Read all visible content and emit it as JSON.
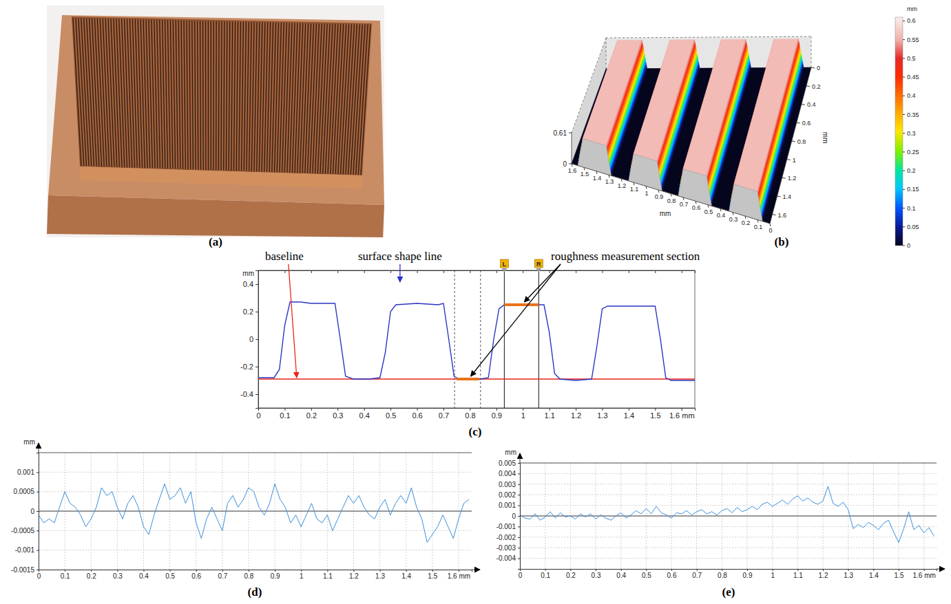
{
  "photo": {
    "panel": "(a)"
  },
  "chart_data": [
    {
      "type": "surface3d",
      "panel": "(b)",
      "x": [
        1.6,
        1.55,
        1.51,
        1.32,
        1.28,
        1.14,
        1.1,
        0.91,
        0.87,
        0.74,
        0.7,
        0.51,
        0.47,
        0.33,
        0.29,
        0.1,
        0.06,
        0
      ],
      "values": [
        0,
        0,
        0.56,
        0.56,
        0,
        0,
        0.56,
        0.56,
        0,
        0,
        0.56,
        0.56,
        0,
        0,
        0.56,
        0.56,
        0,
        0
      ],
      "xlim": [
        0,
        1.6
      ],
      "xticks": [
        1.6,
        1.5,
        1.4,
        1.3,
        1.2,
        1.1,
        1,
        0.9,
        0.8,
        0.7,
        0.6,
        0.5,
        0.4,
        0.3,
        0.2,
        0.1,
        0
      ],
      "ylim": [
        0,
        1.7
      ],
      "yticks": [
        0,
        0.2,
        0.4,
        0.6,
        0.8,
        1,
        1.2,
        1.4,
        1.6
      ],
      "zlim": [
        0,
        0.61
      ],
      "zticks": [
        0,
        0.61
      ],
      "x_label": "mm",
      "y_label": "mm",
      "colorbar": {
        "label": "mm",
        "range": [
          0,
          0.61
        ],
        "ticks": [
          0,
          0.05,
          0.1,
          0.15,
          0.2,
          0.25,
          0.3,
          0.35,
          0.4,
          0.45,
          0.5,
          0.55,
          0.6
        ]
      }
    },
    {
      "type": "line",
      "panel": "(c)",
      "x": [
        0,
        0.06,
        0.08,
        0.1,
        0.12,
        0.16,
        0.2,
        0.25,
        0.29,
        0.31,
        0.33,
        0.36,
        0.42,
        0.46,
        0.48,
        0.5,
        0.52,
        0.6,
        0.68,
        0.7,
        0.72,
        0.74,
        0.76,
        0.84,
        0.87,
        0.89,
        0.91,
        0.93,
        1,
        1.08,
        1.1,
        1.12,
        1.14,
        1.2,
        1.26,
        1.28,
        1.3,
        1.32,
        1.4,
        1.5,
        1.52,
        1.54,
        1.56,
        1.65
      ],
      "values": [
        -0.28,
        -0.28,
        -0.22,
        0.1,
        0.27,
        0.27,
        0.26,
        0.26,
        0.26,
        0,
        -0.27,
        -0.29,
        -0.29,
        -0.28,
        -0.1,
        0.2,
        0.25,
        0.26,
        0.25,
        0.26,
        0,
        -0.27,
        -0.29,
        -0.29,
        -0.28,
        0,
        0.22,
        0.25,
        0.25,
        0.25,
        0.05,
        -0.25,
        -0.29,
        -0.3,
        -0.29,
        -0.05,
        0.22,
        0.24,
        0.24,
        0.24,
        0,
        -0.28,
        -0.3,
        -0.3
      ],
      "color": "#2b35c4",
      "xlim": [
        0,
        1.65
      ],
      "xticks": [
        0,
        0.1,
        0.2,
        0.3,
        0.4,
        0.5,
        0.6,
        0.7,
        0.8,
        0.9,
        1,
        1.1,
        1.2,
        1.3,
        1.4,
        1.5,
        {
          "value": 1.6,
          "label": "1.6 mm"
        }
      ],
      "ylim": [
        -0.5,
        0.5
      ],
      "yticks": [
        -0.4,
        -0.2,
        0,
        0.2,
        0.4
      ],
      "y_label": "mm",
      "grid": false,
      "baseline": {
        "value": -0.29,
        "label": "baseline",
        "color": "#e8231a"
      },
      "line_label": "surface shape line",
      "markers": [
        {
          "label": "L",
          "x": 0.93
        },
        {
          "label": "R",
          "x": 1.06
        }
      ],
      "guides": [
        0.742,
        0.84
      ],
      "sections": [
        {
          "x": [
            0.75,
            0.835
          ],
          "y": -0.29
        },
        {
          "x": [
            0.93,
            1.06
          ],
          "y": 0.25
        }
      ],
      "sections_label": "roughness measurement section"
    },
    {
      "type": "line",
      "panel": "(d)",
      "x": [
        0,
        0.02,
        0.04,
        0.06,
        0.08,
        0.1,
        0.12,
        0.14,
        0.16,
        0.18,
        0.2,
        0.22,
        0.24,
        0.26,
        0.28,
        0.3,
        0.32,
        0.34,
        0.36,
        0.38,
        0.4,
        0.42,
        0.44,
        0.46,
        0.48,
        0.5,
        0.52,
        0.54,
        0.56,
        0.58,
        0.6,
        0.62,
        0.64,
        0.66,
        0.68,
        0.7,
        0.72,
        0.74,
        0.76,
        0.78,
        0.8,
        0.82,
        0.84,
        0.86,
        0.88,
        0.9,
        0.92,
        0.94,
        0.96,
        0.98,
        1,
        1.02,
        1.04,
        1.06,
        1.08,
        1.1,
        1.12,
        1.14,
        1.16,
        1.18,
        1.2,
        1.22,
        1.24,
        1.26,
        1.28,
        1.3,
        1.32,
        1.34,
        1.36,
        1.38,
        1.4,
        1.42,
        1.44,
        1.46,
        1.48,
        1.5,
        1.52,
        1.54,
        1.56,
        1.58,
        1.6,
        1.62,
        1.64
      ],
      "values": [
        -0.0001,
        -0.0003,
        -0.0002,
        -0.0003,
        0.0001,
        0.0005,
        0.0002,
        0.0001,
        -0.0001,
        -0.0004,
        -0.0002,
        0.0001,
        0.0006,
        0.0004,
        0.0005,
        0.0001,
        -0.0002,
        0.0002,
        0.0004,
        0.0001,
        -0.0004,
        -0.0006,
        -0.0001,
        0.0003,
        0.0007,
        0.0003,
        0.0004,
        0.0006,
        0.0002,
        0.0005,
        -0.0003,
        -0.0007,
        -0.0002,
        0.0001,
        -0.0002,
        -0.0005,
        0.0002,
        0.0004,
        0.0001,
        0.0003,
        0.0006,
        0.0005,
        0.0001,
        -0.0001,
        0.0002,
        0.0007,
        0.0003,
        0.0001,
        -0.0003,
        -0.0001,
        -0.0004,
        -0.0001,
        0.0002,
        -0.0002,
        -0.0003,
        -0.0001,
        -0.0005,
        -0.0002,
        0.0001,
        0.0004,
        0.0002,
        0.0004,
        0.0001,
        -0.0001,
        -0.0002,
        0.0001,
        0.0003,
        -0.0001,
        0.0002,
        0.0004,
        0.0002,
        0.0006,
        0.0001,
        -0.0002,
        -0.0008,
        -0.0006,
        -0.0004,
        -0.0001,
        -0.0004,
        -0.0007,
        -0.0002,
        0.0002,
        0.0003
      ],
      "color": "#3a8edb",
      "xlim": [
        0,
        1.65
      ],
      "xticks": [
        0,
        0.1,
        0.2,
        0.3,
        0.4,
        0.5,
        0.6,
        0.7,
        0.8,
        0.9,
        1,
        1.1,
        1.2,
        1.3,
        1.4,
        1.5,
        {
          "value": 1.6,
          "label": "1.6 mm"
        }
      ],
      "ylim": [
        -0.0015,
        0.0015
      ],
      "yticks": [
        -0.0015,
        -0.001,
        -0.0005,
        0,
        0.0005,
        0.001
      ],
      "y_label": "mm",
      "grid": true
    },
    {
      "type": "line",
      "panel": "(e)",
      "x": [
        0,
        0.02,
        0.04,
        0.06,
        0.08,
        0.1,
        0.12,
        0.14,
        0.16,
        0.18,
        0.2,
        0.22,
        0.24,
        0.26,
        0.28,
        0.3,
        0.32,
        0.34,
        0.36,
        0.38,
        0.4,
        0.42,
        0.44,
        0.46,
        0.48,
        0.5,
        0.52,
        0.54,
        0.56,
        0.58,
        0.6,
        0.62,
        0.64,
        0.66,
        0.68,
        0.7,
        0.72,
        0.74,
        0.76,
        0.78,
        0.8,
        0.82,
        0.84,
        0.86,
        0.88,
        0.9,
        0.92,
        0.94,
        0.96,
        0.98,
        1,
        1.02,
        1.04,
        1.06,
        1.08,
        1.1,
        1.12,
        1.14,
        1.16,
        1.18,
        1.2,
        1.22,
        1.24,
        1.26,
        1.28,
        1.3,
        1.32,
        1.34,
        1.36,
        1.38,
        1.4,
        1.42,
        1.44,
        1.46,
        1.48,
        1.5,
        1.52,
        1.54,
        1.56,
        1.58,
        1.6,
        1.62,
        1.64
      ],
      "values": [
        0.0001,
        -0.0002,
        -0.0003,
        0.0002,
        -0.0004,
        -0.0001,
        0.0004,
        -0.0002,
        0.0003,
        -0.0001,
        0,
        -0.0003,
        0.0002,
        -0.0001,
        0.0002,
        -0.0003,
        0.0001,
        -0.0002,
        -0.0004,
        0,
        0.0003,
        -0.0002,
        0.0001,
        0.0005,
        0.0002,
        0.0007,
        0.0002,
        0.0009,
        0.0003,
        0.0001,
        -0.0002,
        0.0003,
        0.0002,
        0.0005,
        0.0001,
        0.0004,
        0.0006,
        0.0002,
        0.0004,
        0.0001,
        0.0005,
        0.0007,
        0.0003,
        0.0008,
        0.0004,
        0.0006,
        0.0009,
        0.0006,
        0.0011,
        0.0013,
        0.0009,
        0.0012,
        0.0015,
        0.0011,
        0.0016,
        0.0019,
        0.0014,
        0.0017,
        0.0013,
        0.0011,
        0.0014,
        0.0028,
        0.0012,
        0.0009,
        0.0013,
        0.0006,
        -0.0012,
        -0.0008,
        -0.0011,
        -0.0006,
        -0.0009,
        -0.0013,
        -0.0007,
        -0.0004,
        -0.0015,
        -0.0025,
        -0.0012,
        0.0004,
        -0.0013,
        -0.0009,
        -0.0016,
        -0.0011,
        -0.0019
      ],
      "color": "#3a8edb",
      "xlim": [
        0,
        1.65
      ],
      "xticks": [
        0,
        0.1,
        0.2,
        0.3,
        0.4,
        0.5,
        0.6,
        0.7,
        0.8,
        0.9,
        1,
        1.1,
        1.2,
        1.3,
        1.4,
        1.5,
        {
          "value": 1.6,
          "label": "1.6 mm"
        }
      ],
      "ylim": [
        -0.005,
        0.005
      ],
      "yticks": [
        -0.004,
        -0.003,
        -0.002,
        -0.001,
        0,
        0.001,
        0.002,
        0.003,
        0.004,
        0.005
      ],
      "y_label": "mm",
      "grid": true
    }
  ]
}
